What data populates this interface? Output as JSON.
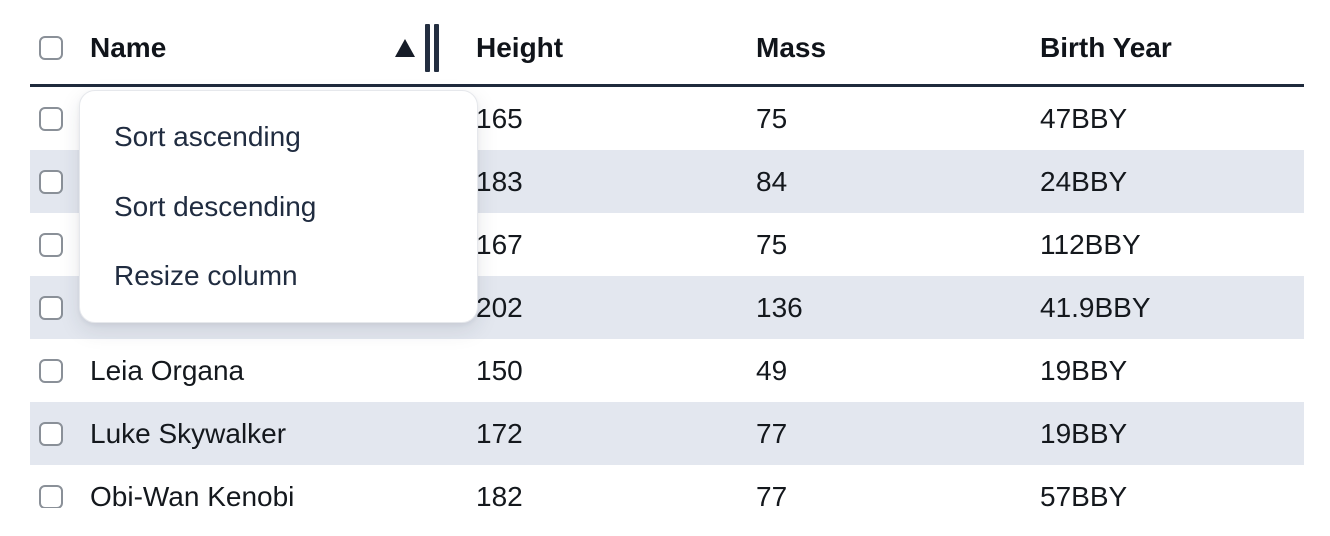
{
  "table": {
    "sort_state": {
      "column": "Name",
      "direction": "ascending"
    },
    "select_all_checked": false,
    "columns": [
      {
        "id": "name",
        "label": "Name"
      },
      {
        "id": "height",
        "label": "Height"
      },
      {
        "id": "mass",
        "label": "Mass"
      },
      {
        "id": "birth_year",
        "label": "Birth Year"
      }
    ],
    "rows": [
      {
        "name": "",
        "height": "165",
        "mass": "75",
        "birth_year": "47BBY",
        "checked": false
      },
      {
        "name": "",
        "height": "183",
        "mass": "84",
        "birth_year": "24BBY",
        "checked": false
      },
      {
        "name": "",
        "height": "167",
        "mass": "75",
        "birth_year": "112BBY",
        "checked": false
      },
      {
        "name": "",
        "height": "202",
        "mass": "136",
        "birth_year": "41.9BBY",
        "checked": false
      },
      {
        "name": "Leia Organa",
        "height": "150",
        "mass": "49",
        "birth_year": "19BBY",
        "checked": false
      },
      {
        "name": "Luke Skywalker",
        "height": "172",
        "mass": "77",
        "birth_year": "19BBY",
        "checked": false
      },
      {
        "name": "Obi-Wan Kenobi",
        "height": "182",
        "mass": "77",
        "birth_year": "57BBY",
        "checked": false
      }
    ]
  },
  "column_menu": {
    "for_column": "Name",
    "items": [
      {
        "label": "Sort ascending"
      },
      {
        "label": "Sort descending"
      },
      {
        "label": "Resize column"
      }
    ]
  },
  "icons": {
    "sort_ascending_indicator": "filled-triangle-up",
    "column_resize_handle": "double-vertical-bar"
  },
  "colors": {
    "header_border": "#1f2a3c",
    "row_stripe": "#e3e7ef",
    "body_text": "#14181d",
    "menu_text": "#202c40",
    "checkbox_border": "#8a9098"
  }
}
